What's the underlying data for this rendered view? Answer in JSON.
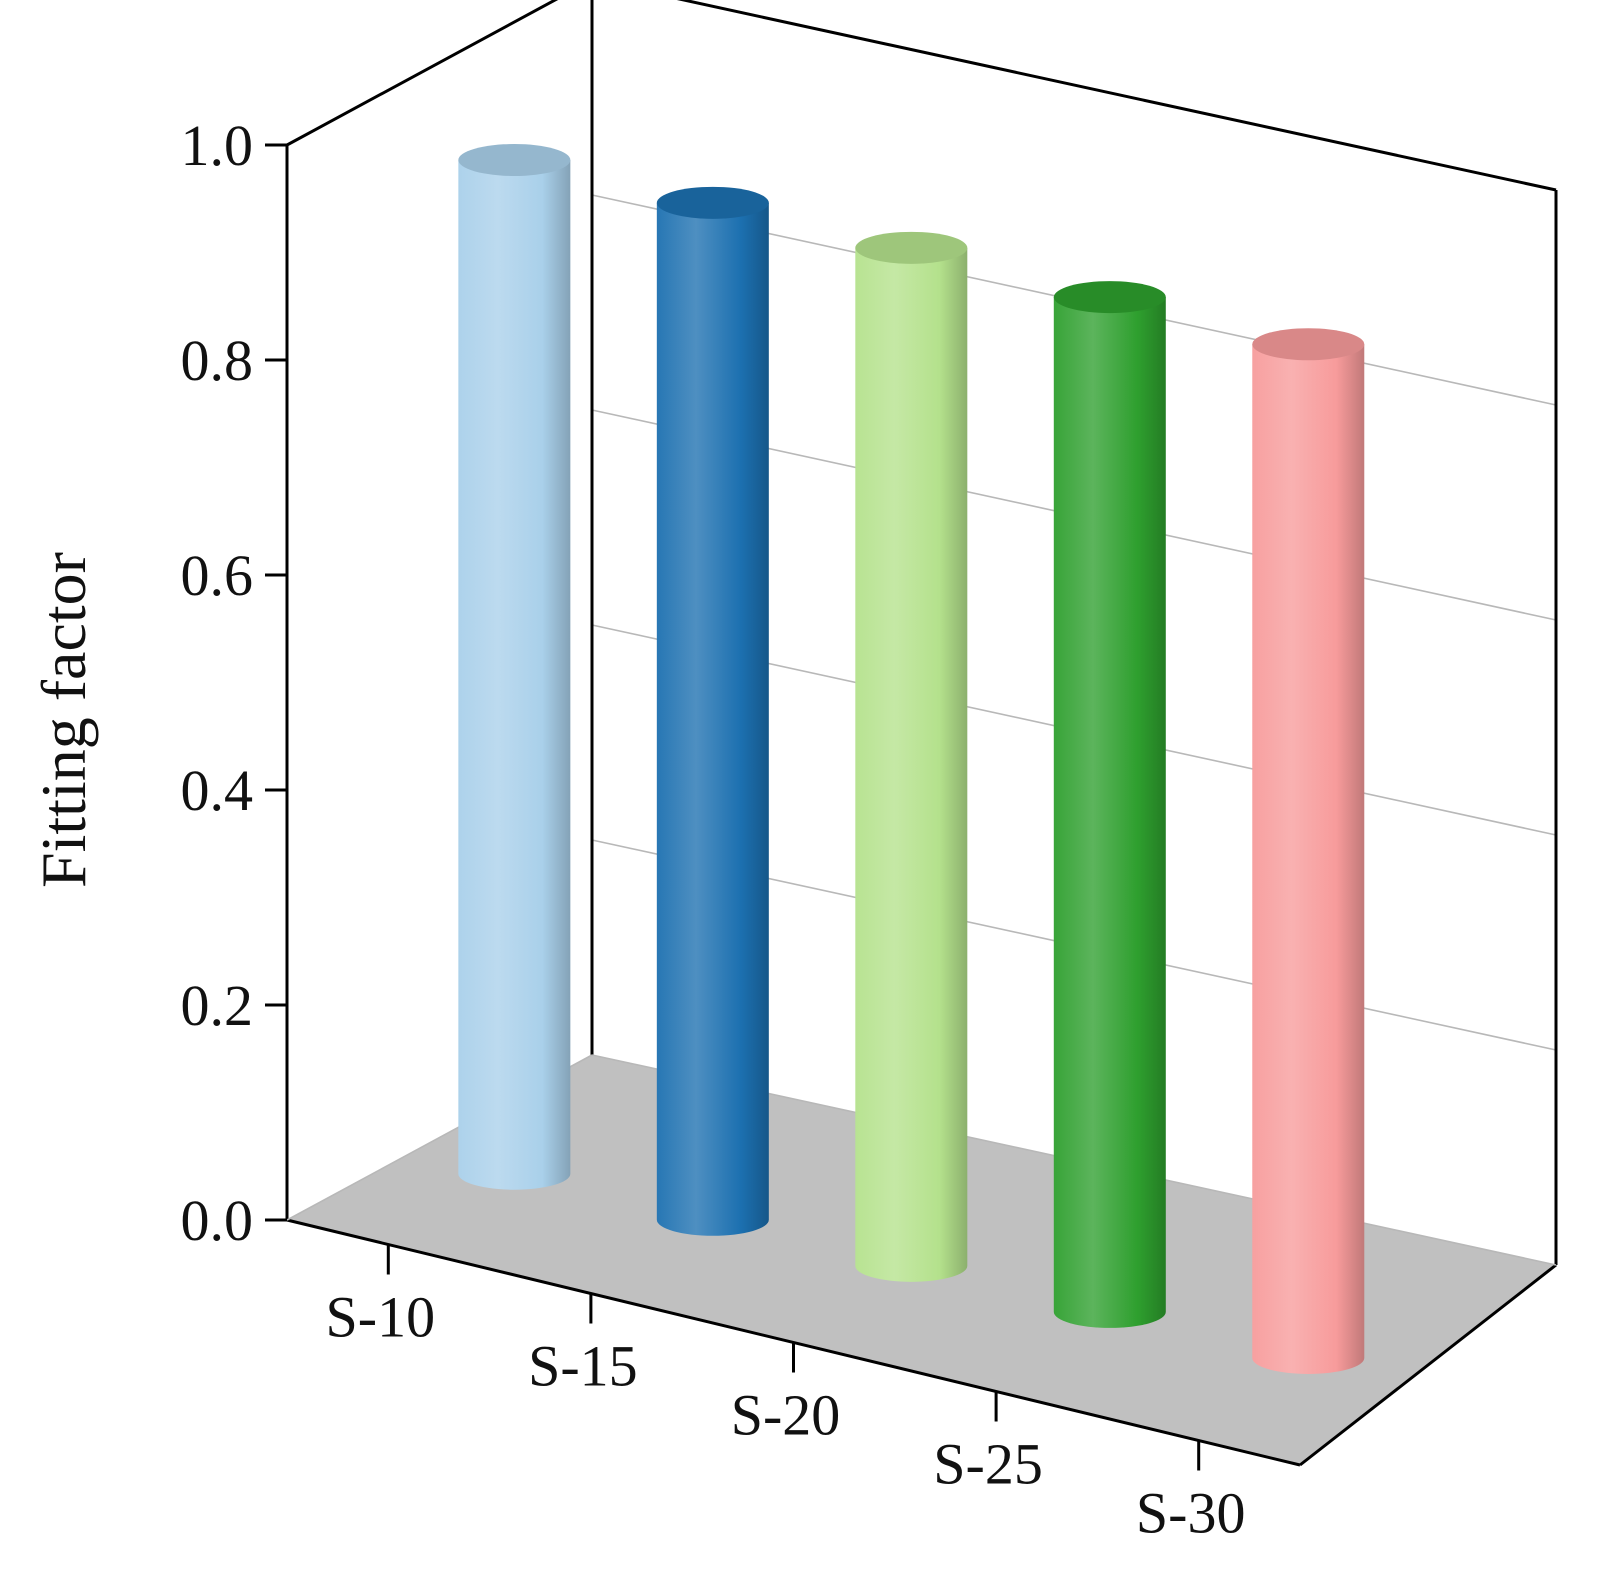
{
  "chart_data": {
    "type": "bar",
    "style": "3d-cylinder",
    "categories": [
      "S-10",
      "S-15",
      "S-20",
      "S-25",
      "S-30"
    ],
    "values": [
      0.943,
      0.946,
      0.947,
      0.944,
      0.943
    ],
    "colors": [
      "#a9d0ea",
      "#1c70b0",
      "#b4e18c",
      "#2e9f2e",
      "#f79b9b"
    ],
    "ylabel": "Fitting factor",
    "xlabel": "",
    "ylim": [
      0,
      1.0
    ],
    "yticks": [
      "0.0",
      "0.2",
      "0.4",
      "0.6",
      "0.8",
      "1.0"
    ],
    "grid": true,
    "floor_color": "#c0c0c0"
  }
}
